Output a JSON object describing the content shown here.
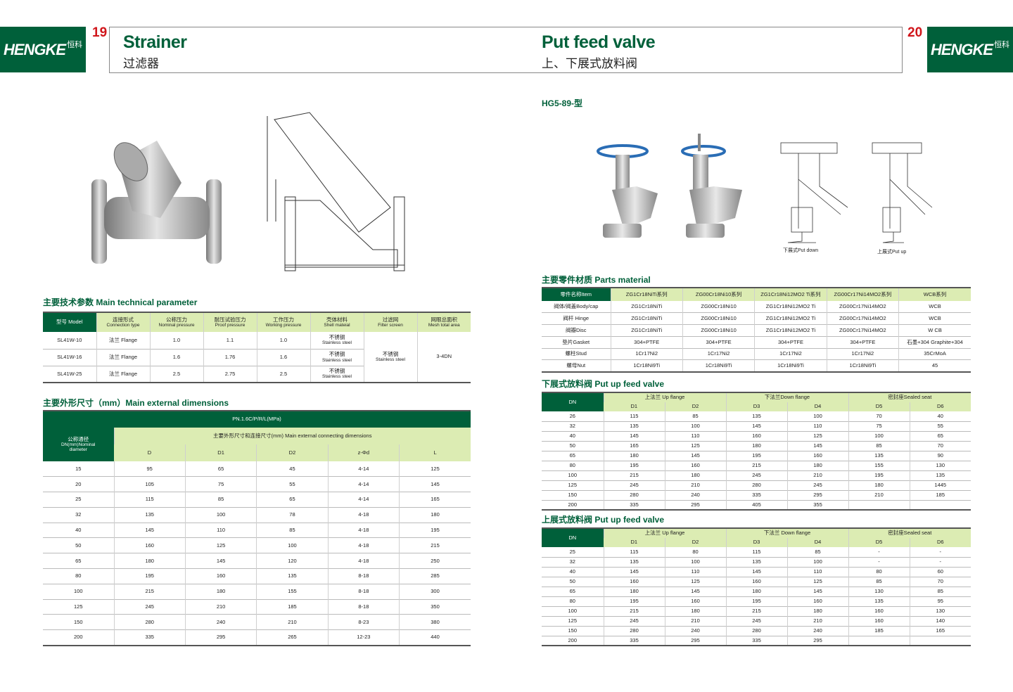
{
  "brand": {
    "logo_text": "HENGKE",
    "logo_cn": "恒科",
    "color": "#00603a"
  },
  "left_page": {
    "number": "19",
    "title_en": "Strainer",
    "title_cn": "过滤器"
  },
  "right_page": {
    "number": "20",
    "title_en": "Put feed valve",
    "title_cn": "上、下展式放料阀",
    "model": "HG5-89-型",
    "captions": {
      "put_down": "下展式Put down",
      "put_up": "上展式Put up"
    }
  },
  "tech": {
    "title": "主要技术参数 Main technical parameter",
    "headers": [
      [
        "型号 Model",
        ""
      ],
      [
        "连接形式",
        "Connection type"
      ],
      [
        "公称压力",
        "Nominal pressure"
      ],
      [
        "耐压试验压力",
        "Proof pressure"
      ],
      [
        "工作压力",
        "Working pressure"
      ],
      [
        "壳体材料",
        "Shell mateial"
      ],
      [
        "过滤网",
        "Filter screen"
      ],
      [
        "网眼总面积",
        "Mesh total area"
      ]
    ],
    "rows": [
      {
        "model": "SL41W-10",
        "conn": "法兰 Flange",
        "nominal": "1.0",
        "proof": "1.1",
        "working": "1.0",
        "shell_cn": "不锈钢",
        "shell_en": "Stainless steel"
      },
      {
        "model": "SL41W-16",
        "conn": "法兰 Flange",
        "nominal": "1.6",
        "proof": "1.76",
        "working": "1.6",
        "shell_cn": "不锈钢",
        "shell_en": "Stainless steel"
      },
      {
        "model": "SL41W-25",
        "conn": "法兰 Flange",
        "nominal": "2.5",
        "proof": "2.75",
        "working": "2.5",
        "shell_cn": "不锈钢",
        "shell_en": "Stainless steel"
      }
    ],
    "filter_cn": "不锈钢",
    "filter_en": "Stainless steel",
    "mesh": "3-4DN"
  },
  "dims": {
    "title": "主要外形尺寸（mm）Main external dimensions",
    "pn": "PN.1.6C/P/R/L(MPa)",
    "dn_head": [
      "公称通径",
      "DN(mm)Nominal",
      "diameter"
    ],
    "group": "主要外形尺寸和连接尺寸(mm) Main external connecting dimensions",
    "cols": [
      "D",
      "D1",
      "D2",
      "z-Φd",
      "L"
    ],
    "rows": [
      [
        "15",
        "95",
        "65",
        "45",
        "4-14",
        "125"
      ],
      [
        "20",
        "105",
        "75",
        "55",
        "4-14",
        "145"
      ],
      [
        "25",
        "115",
        "85",
        "65",
        "4-14",
        "165"
      ],
      [
        "32",
        "135",
        "100",
        "78",
        "4-18",
        "180"
      ],
      [
        "40",
        "145",
        "110",
        "85",
        "4-18",
        "195"
      ],
      [
        "50",
        "160",
        "125",
        "100",
        "4-18",
        "215"
      ],
      [
        "65",
        "180",
        "145",
        "120",
        "4-18",
        "250"
      ],
      [
        "80",
        "195",
        "160",
        "135",
        "8-18",
        "285"
      ],
      [
        "100",
        "215",
        "180",
        "155",
        "8-18",
        "300"
      ],
      [
        "125",
        "245",
        "210",
        "185",
        "8-18",
        "350"
      ],
      [
        "150",
        "280",
        "240",
        "210",
        "8-23",
        "380"
      ],
      [
        "200",
        "335",
        "295",
        "265",
        "12-23",
        "440"
      ]
    ]
  },
  "parts": {
    "title": "主要零件材质 Parts material",
    "cols": [
      "零件名称Item",
      "ZG1Cr18NiTi系列",
      "ZG00Cr18Ni10系列",
      "ZG1Cr18Ni12MO2 Ti系列",
      "ZG00Cr17Ni14MO2系列",
      "WCB系列"
    ],
    "rows": [
      [
        "阀体/阀盖Body/cap",
        "ZG1Cr18NiTi",
        "ZG00Cr18Ni10",
        "ZG1Cr18Ni12MO2 Ti",
        "ZG00Cr17Ni14MO2",
        "WCB"
      ],
      [
        "阀杆 Hinge",
        "ZG1Cr18NiTi",
        "ZG00Cr18Ni10",
        "ZG1Cr18Ni12MO2 Ti",
        "ZG00Cr17Ni14MO2",
        "WCB"
      ],
      [
        "阀瓣Disc",
        "ZG1Cr18NiTi",
        "ZG00Cr18Ni10",
        "ZG1Cr18Ni12MO2 Ti",
        "ZG00Cr17Ni14MO2",
        "W CB"
      ],
      [
        "垫片Gasket",
        "304+PTFE",
        "304+PTFE",
        "304+PTFE",
        "304+PTFE",
        "石墨+304 Graphite+304"
      ],
      [
        "螺柱Stud",
        "1Cr17Ni2",
        "1Cr17Ni2",
        "1Cr17Ni2",
        "1Cr17Ni2",
        "35CrMoA"
      ],
      [
        "螺母Nut",
        "1Cr18Ni9Ti",
        "1Cr18Ni9Ti",
        "1Cr18Ni9Ti",
        "1Cr18Ni9Ti",
        "45"
      ]
    ]
  },
  "down": {
    "title": "下展式放料阀 Put up feed valve",
    "dn": "DN",
    "groups": [
      "上法兰 Up flange",
      "下法兰Down flange",
      "密封座Sealed seat"
    ],
    "cols": [
      "D1",
      "D2",
      "D3",
      "D4",
      "D5",
      "D6"
    ],
    "rows": [
      [
        "26",
        "115",
        "85",
        "135",
        "100",
        "70",
        "40"
      ],
      [
        "32",
        "135",
        "100",
        "145",
        "110",
        "75",
        "55"
      ],
      [
        "40",
        "145",
        "110",
        "160",
        "125",
        "100",
        "65"
      ],
      [
        "50",
        "165",
        "125",
        "180",
        "145",
        "85",
        "70"
      ],
      [
        "65",
        "180",
        "145",
        "195",
        "160",
        "135",
        "90"
      ],
      [
        "80",
        "195",
        "160",
        "215",
        "180",
        "155",
        "130"
      ],
      [
        "100",
        "215",
        "180",
        "245",
        "210",
        "195",
        "135"
      ],
      [
        "125",
        "245",
        "210",
        "280",
        "245",
        "180",
        "1445"
      ],
      [
        "150",
        "280",
        "240",
        "335",
        "295",
        "210",
        "185"
      ],
      [
        "200",
        "335",
        "295",
        "405",
        "355",
        "",
        ""
      ]
    ]
  },
  "up": {
    "title": "上展式放料阀 Put up feed valve",
    "dn": "DN",
    "groups": [
      "上法兰 Up flange",
      "下法兰 Down flange",
      "密封座Sealed seat"
    ],
    "cols": [
      "D1",
      "D2",
      "D3",
      "D4",
      "D5",
      "D6"
    ],
    "rows": [
      [
        "25",
        "115",
        "80",
        "115",
        "85",
        "-",
        "-"
      ],
      [
        "32",
        "135",
        "100",
        "135",
        "100",
        "-",
        "-"
      ],
      [
        "40",
        "145",
        "110",
        "145",
        "110",
        "80",
        "60"
      ],
      [
        "50",
        "160",
        "125",
        "160",
        "125",
        "85",
        "70"
      ],
      [
        "65",
        "180",
        "145",
        "180",
        "145",
        "130",
        "85"
      ],
      [
        "80",
        "195",
        "160",
        "195",
        "160",
        "135",
        "95"
      ],
      [
        "100",
        "215",
        "180",
        "215",
        "180",
        "160",
        "130"
      ],
      [
        "125",
        "245",
        "210",
        "245",
        "210",
        "160",
        "140"
      ],
      [
        "150",
        "280",
        "240",
        "280",
        "240",
        "185",
        "165"
      ],
      [
        "200",
        "335",
        "295",
        "335",
        "295",
        "",
        ""
      ]
    ]
  }
}
